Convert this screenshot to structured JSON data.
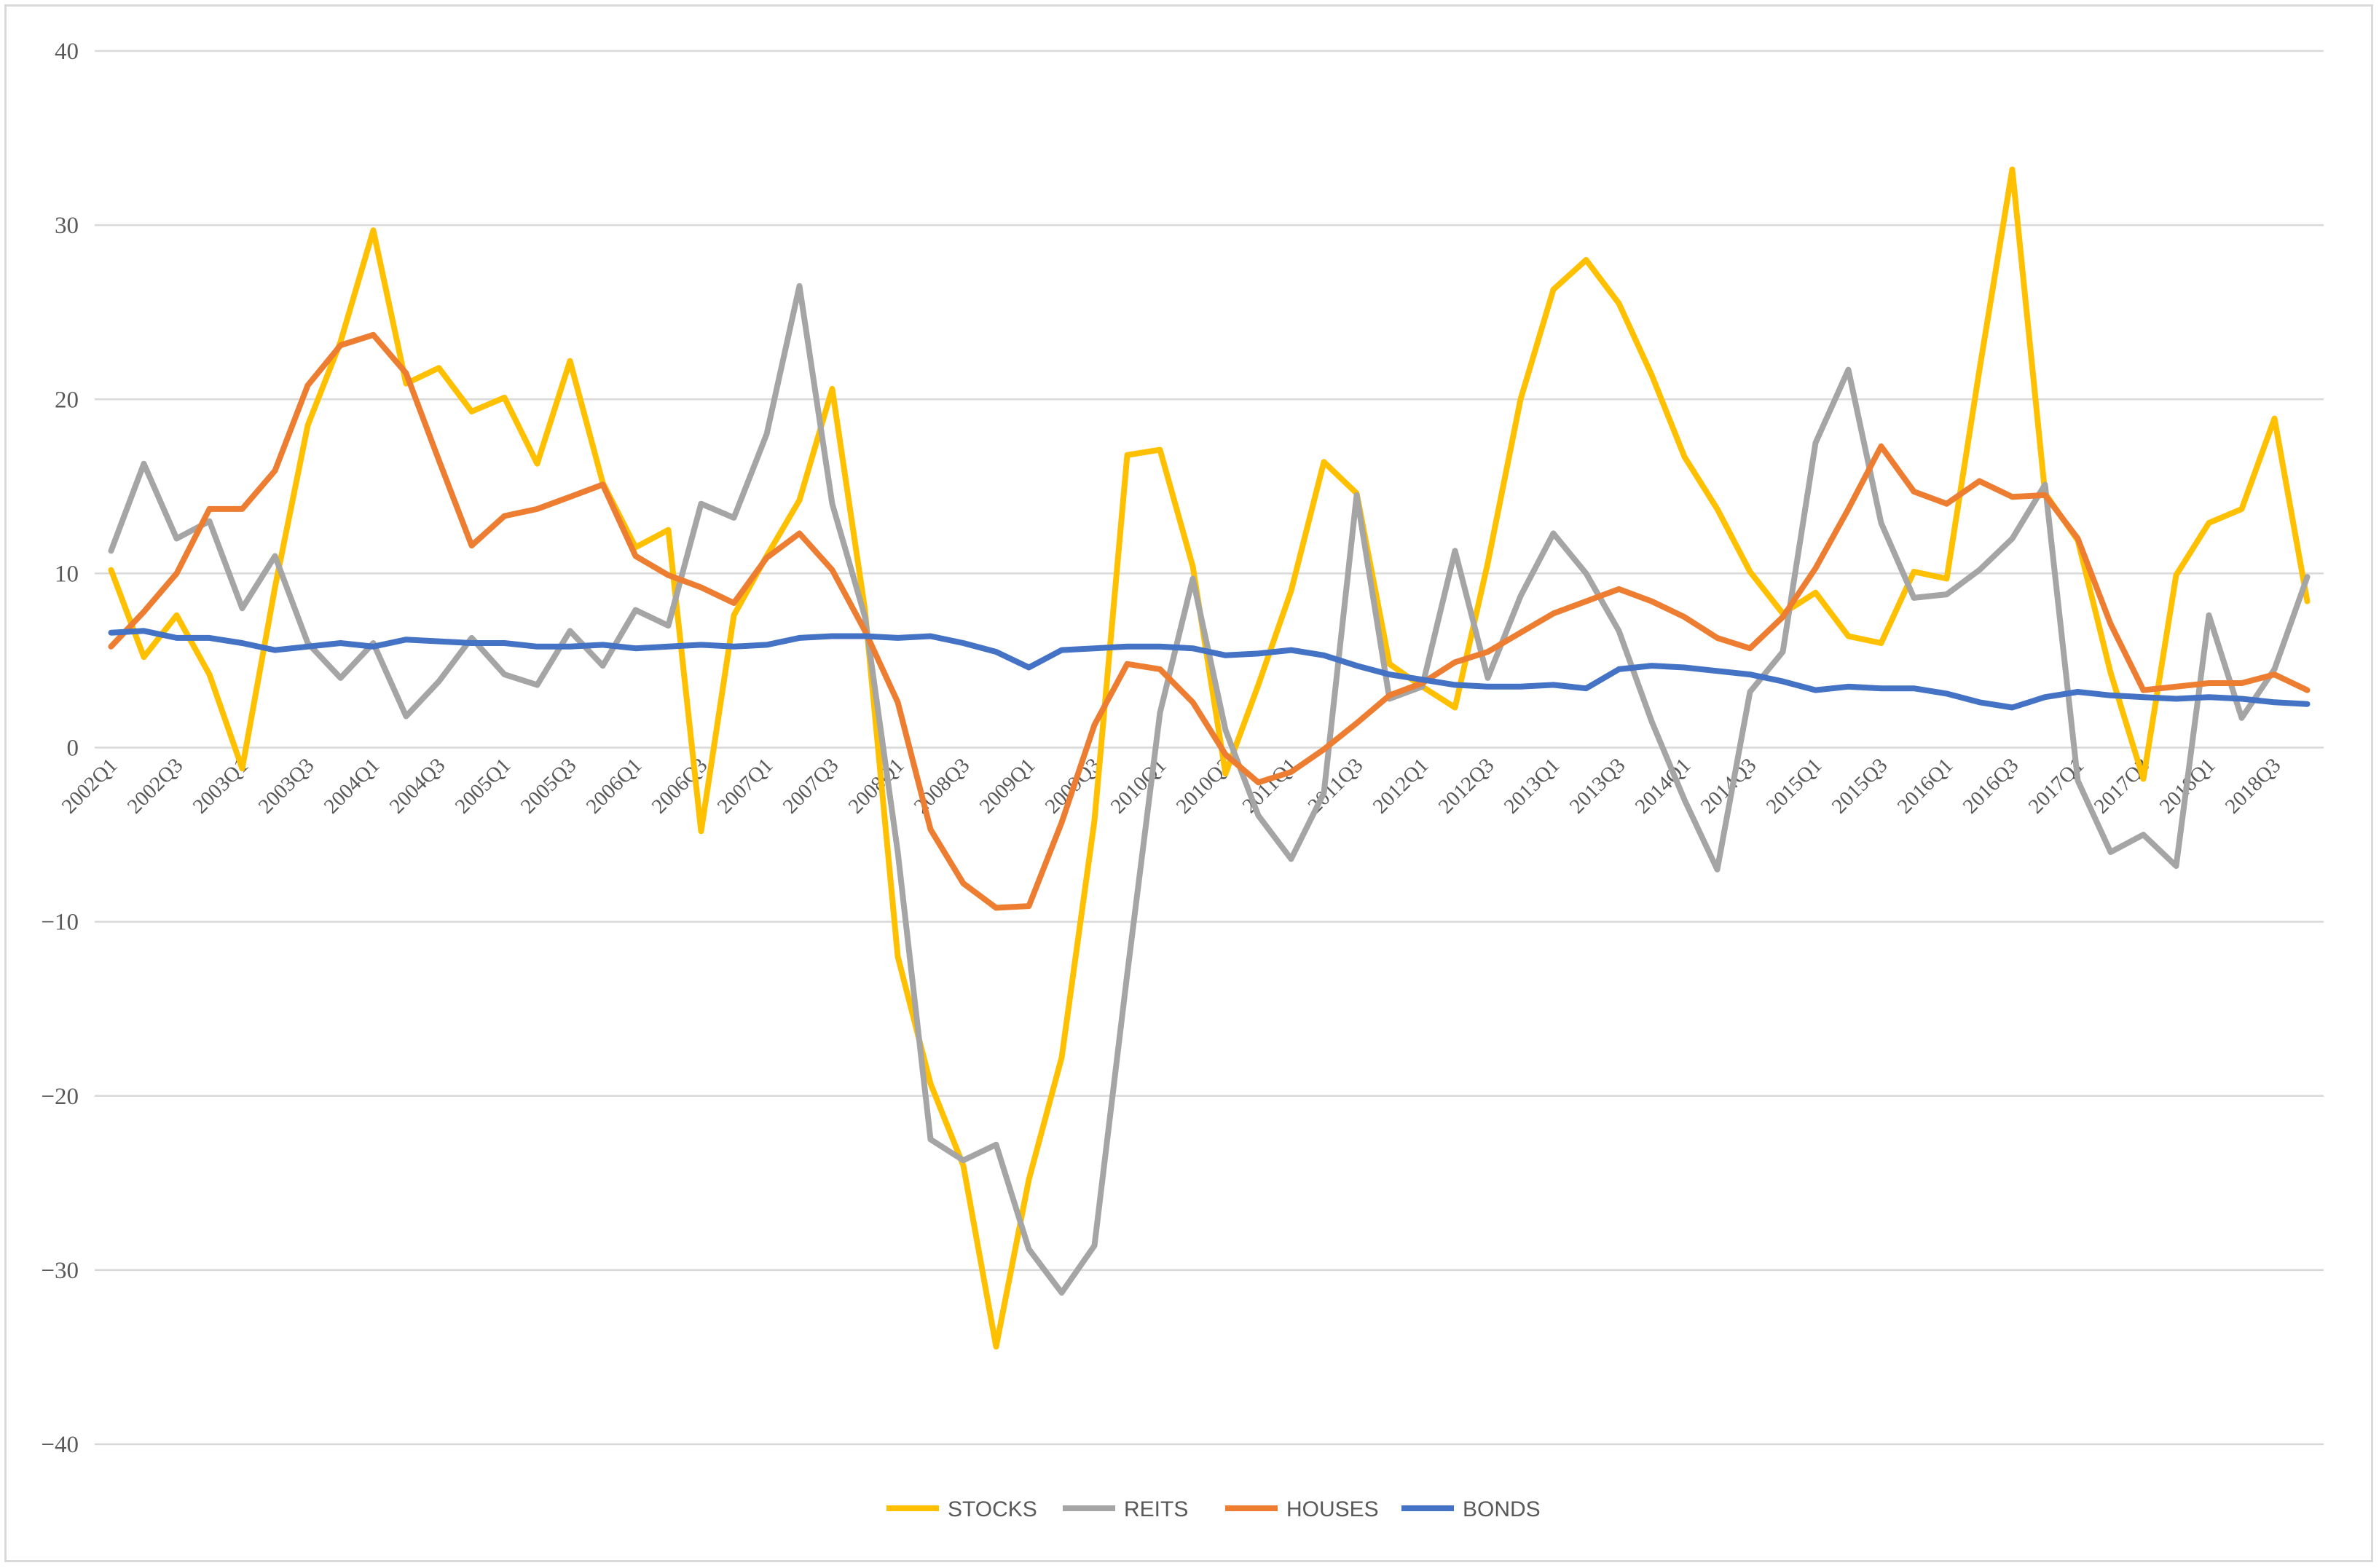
{
  "chart_data": {
    "type": "line",
    "title": "",
    "xlabel": "",
    "ylabel": "",
    "ylim": [
      -40,
      40
    ],
    "yticks": [
      40,
      30,
      20,
      10,
      0,
      -10,
      -20,
      -30,
      -40
    ],
    "ytick_labels": [
      "40",
      "30",
      "20",
      "10",
      "0",
      "−10",
      "−20",
      "−30",
      "−40"
    ],
    "grid": true,
    "legend_position": "bottom",
    "categories": [
      "2002Q1",
      "2002Q2",
      "2002Q3",
      "2002Q4",
      "2003Q1",
      "2003Q2",
      "2003Q3",
      "2003Q4",
      "2004Q1",
      "2004Q2",
      "2004Q3",
      "2004Q4",
      "2005Q1",
      "2005Q2",
      "2005Q3",
      "2005Q4",
      "2006Q1",
      "2006Q2",
      "2006Q3",
      "2006Q4",
      "2007Q1",
      "2007Q2",
      "2007Q3",
      "2007Q4",
      "2008Q1",
      "2008Q2",
      "2008Q3",
      "2008Q4",
      "2009Q1",
      "2009Q2",
      "2009Q3",
      "2009Q4",
      "2010Q1",
      "2010Q2",
      "2010Q3",
      "2010Q4",
      "2011Q1",
      "2011Q2",
      "2011Q3",
      "2011Q4",
      "2012Q1",
      "2012Q2",
      "2012Q3",
      "2012Q4",
      "2013Q1",
      "2013Q2",
      "2013Q3",
      "2013Q4",
      "2014Q1",
      "2014Q2",
      "2014Q3",
      "2014Q4",
      "2015Q1",
      "2015Q2",
      "2015Q3",
      "2015Q4",
      "2016Q1",
      "2016Q2",
      "2016Q3",
      "2016Q4",
      "2017Q1",
      "2017Q2",
      "2017Q3",
      "2017Q4",
      "2018Q1",
      "2018Q2",
      "2018Q3",
      "2018Q4"
    ],
    "xtick_labels": [
      "2002Q1",
      "2002Q3",
      "2003Q1",
      "2003Q3",
      "2004Q1",
      "2004Q3",
      "2005Q1",
      "2005Q3",
      "2006Q1",
      "2006Q3",
      "2007Q1",
      "2007Q3",
      "2008Q1",
      "2008Q3",
      "2009Q1",
      "2009Q3",
      "2010Q1",
      "2010Q3",
      "2011Q1",
      "2011Q3",
      "2012Q1",
      "2012Q3",
      "2013Q1",
      "2013Q3",
      "2014Q1",
      "2014Q3",
      "2015Q1",
      "2015Q3",
      "2016Q1",
      "2016Q3",
      "2017Q1",
      "2017Q3",
      "2018Q1",
      "2018Q3"
    ],
    "series": [
      {
        "name": "STOCKS",
        "color": "#FFC000",
        "values": [
          10.2,
          5.2,
          7.6,
          4.2,
          -1.2,
          9.2,
          18.5,
          23.3,
          29.7,
          20.9,
          21.8,
          19.3,
          20.1,
          16.3,
          22.2,
          15.2,
          11.5,
          12.5,
          -4.8,
          7.6,
          11.0,
          14.2,
          20.6,
          7.9,
          -12.0,
          -19.3,
          -24.0,
          -34.4,
          -24.8,
          -17.8,
          -4.2,
          16.8,
          17.1,
          10.4,
          -1.5,
          3.6,
          9.0,
          16.4,
          14.6,
          4.8,
          3.5,
          2.3,
          10.6,
          20.0,
          26.3,
          28.0,
          25.5,
          21.4,
          16.7,
          13.7,
          10.1,
          7.7,
          8.9,
          6.4,
          6.0,
          10.1,
          9.7,
          21.7,
          33.2,
          14.6,
          11.9,
          4.3,
          -1.8,
          9.9,
          12.9,
          13.7,
          18.9,
          8.4
        ]
      },
      {
        "name": "REITS",
        "color": "#A5A5A5",
        "values": [
          11.3,
          16.3,
          12.0,
          13.0,
          8.0,
          11.0,
          6.0,
          4.0,
          6.0,
          1.8,
          3.8,
          6.3,
          4.2,
          3.6,
          6.7,
          4.7,
          7.9,
          7.0,
          14.0,
          13.2,
          18.0,
          26.5,
          14.0,
          7.5,
          -6.0,
          -22.5,
          -23.7,
          -22.8,
          -28.8,
          -31.3,
          -28.6,
          -13.0,
          2.0,
          9.7,
          1.0,
          -3.9,
          -6.4,
          -2.6,
          14.5,
          2.8,
          3.5,
          11.3,
          4.0,
          8.7,
          12.3,
          10.0,
          6.7,
          1.5,
          -3.0,
          -7.0,
          3.2,
          5.5,
          17.5,
          21.7,
          12.9,
          8.6,
          8.8,
          10.2,
          12.0,
          15.1,
          -1.9,
          -6.0,
          -5.0,
          -6.8,
          7.6,
          1.7,
          4.5,
          9.8
        ]
      },
      {
        "name": "HOUSES",
        "color": "#ED7D31",
        "values": [
          5.8,
          7.8,
          10.0,
          13.7,
          13.7,
          15.9,
          20.8,
          23.1,
          23.7,
          21.5,
          16.5,
          11.6,
          13.3,
          13.7,
          14.4,
          15.1,
          11.0,
          9.9,
          9.2,
          8.3,
          10.9,
          12.3,
          10.2,
          6.7,
          2.6,
          -4.7,
          -7.8,
          -9.2,
          -9.1,
          -4.3,
          1.3,
          4.8,
          4.5,
          2.6,
          -0.4,
          -2.0,
          -1.4,
          -0.1,
          1.4,
          3.0,
          3.7,
          4.9,
          5.5,
          6.6,
          7.7,
          8.4,
          9.1,
          8.4,
          7.5,
          6.3,
          5.7,
          7.5,
          10.3,
          13.7,
          17.3,
          14.7,
          14.0,
          15.3,
          14.4,
          14.5,
          12.0,
          7.1,
          3.3,
          3.5,
          3.7,
          3.7,
          4.2,
          3.3
        ]
      },
      {
        "name": "BONDS",
        "color": "#4472C4",
        "values": [
          6.6,
          6.7,
          6.3,
          6.3,
          6.0,
          5.6,
          5.8,
          6.0,
          5.8,
          6.2,
          6.1,
          6.0,
          6.0,
          5.8,
          5.8,
          5.9,
          5.7,
          5.8,
          5.9,
          5.8,
          5.9,
          6.3,
          6.4,
          6.4,
          6.3,
          6.4,
          6.0,
          5.5,
          4.6,
          5.6,
          5.7,
          5.8,
          5.8,
          5.7,
          5.3,
          5.4,
          5.6,
          5.3,
          4.7,
          4.2,
          3.9,
          3.6,
          3.5,
          3.5,
          3.6,
          3.4,
          4.5,
          4.7,
          4.6,
          4.4,
          4.2,
          3.8,
          3.3,
          3.5,
          3.4,
          3.4,
          3.1,
          2.6,
          2.3,
          2.9,
          3.2,
          3.0,
          2.9,
          2.8,
          2.9,
          2.8,
          2.6,
          2.5
        ]
      }
    ]
  }
}
